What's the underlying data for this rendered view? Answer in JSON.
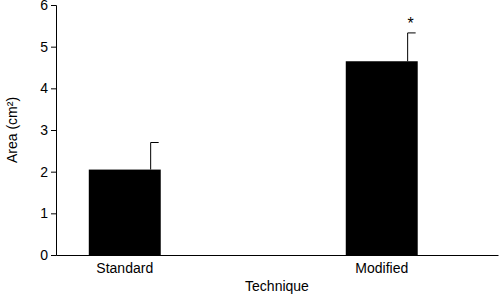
{
  "chart_data": {
    "type": "bar",
    "x_label": "Technique",
    "y_label": "Area (cm²)",
    "categories": [
      "Standard",
      "Modified"
    ],
    "values": [
      2.05,
      4.65
    ],
    "errors": [
      0.65,
      0.68
    ],
    "color": "#000000",
    "ylim": [
      0,
      6
    ],
    "yticks": [
      0,
      1,
      2,
      3,
      4,
      5,
      6
    ],
    "grid": false,
    "annotations": [
      {
        "text": "*",
        "category": "Modified"
      }
    ]
  }
}
